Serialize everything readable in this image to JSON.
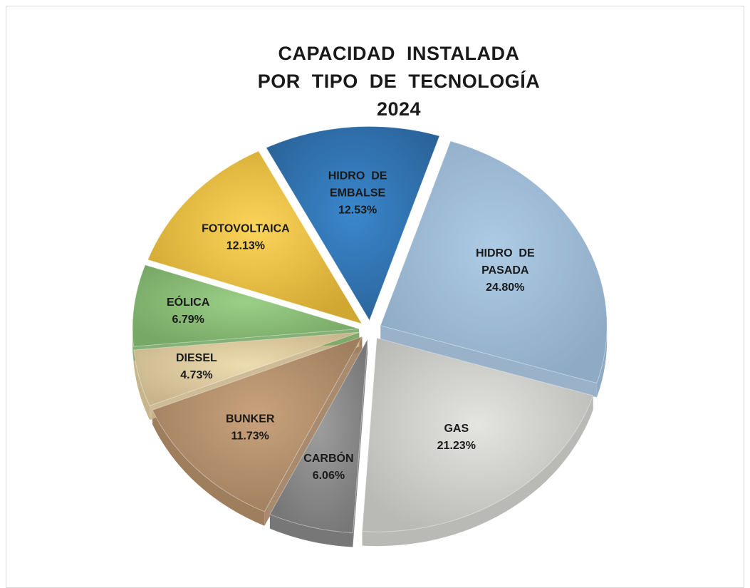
{
  "chart_data": {
    "type": "pie",
    "title_lines": [
      "CAPACIDAD  INSTALADA",
      "POR  TIPO  DE  TECNOLOGÍA",
      "2024"
    ],
    "legend": "none",
    "slices": [
      {
        "label_lines": [
          "HIDRO  DE",
          "PASADA"
        ],
        "value_text": "24.80%",
        "value": 24.8,
        "color": "#aecbe5",
        "side": "#8eaac4"
      },
      {
        "label_lines": [
          "GAS"
        ],
        "value_text": "21.23%",
        "value": 21.23,
        "color": "#e4e4e0",
        "side": "#b9b9b5"
      },
      {
        "label_lines": [
          "CARBÓN"
        ],
        "value_text": "6.06%",
        "value": 6.06,
        "color": "#9d9d9d",
        "side": "#777777"
      },
      {
        "label_lines": [
          "BUNKER"
        ],
        "value_text": "11.73%",
        "value": 11.73,
        "color": "#c8a27c",
        "side": "#9f7e5e"
      },
      {
        "label_lines": [
          "DIESEL"
        ],
        "value_text": "4.73%",
        "value": 4.73,
        "color": "#eedcb1",
        "side": "#c8b58b"
      },
      {
        "label_lines": [
          "EÓLICA"
        ],
        "value_text": "6.79%",
        "value": 6.79,
        "color": "#9bcf87",
        "side": "#77a866"
      },
      {
        "label_lines": [
          "FOTOVOLTAICA"
        ],
        "value_text": "12.13%",
        "value": 12.13,
        "color": "#fcd45a",
        "side": "#cfa731"
      },
      {
        "label_lines": [
          "HIDRO  DE",
          "EMBALSE"
        ],
        "value_text": "12.53%",
        "value": 12.53,
        "color": "#3a87cd",
        "side": "#2a6399"
      }
    ]
  }
}
